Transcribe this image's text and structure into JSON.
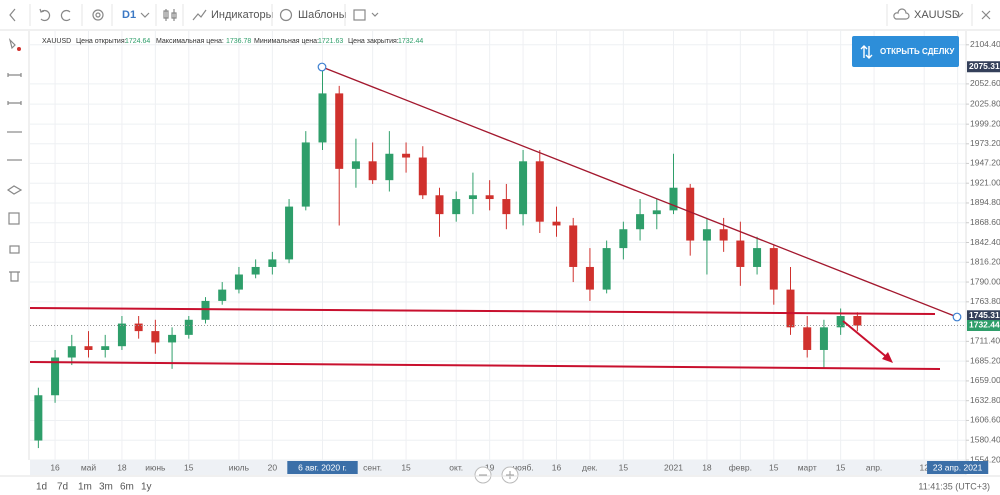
{
  "toolbar": {
    "timeframe": "D1",
    "indicators": "Индикаторы",
    "templates": "Шаблоны",
    "symbol": "XAUUSD"
  },
  "info": {
    "symbol": "XAUUSD",
    "open_label": "Цена открытия:",
    "open": 1724.64,
    "high_label": "Максимальная цена:",
    "high": 1736.78,
    "low_label": "Минимальная цена:",
    "low": 1721.63,
    "close_label": "Цена закрытия:",
    "close": 1732.44
  },
  "button": "ОТКРЫТЬ СДЕЛКУ",
  "bottom_bar": {
    "ranges": [
      "1d",
      "7d",
      "1m",
      "3m",
      "6m",
      "1y"
    ],
    "clock": "11:41:35 (UTC+3)"
  },
  "chart_data": {
    "type": "candlestick",
    "categories": [
      null,
      "16",
      null,
      "май",
      null,
      "18",
      null,
      "июнь",
      null,
      "15",
      null,
      null,
      "июль",
      null,
      "20",
      null,
      null,
      "6 авг. 2020 г.",
      null,
      null,
      "сент.",
      null,
      "15",
      null,
      null,
      "окт.",
      null,
      "19",
      null,
      "нояб.",
      null,
      "16",
      null,
      "дек.",
      null,
      "15",
      null,
      null,
      "2021",
      null,
      "18",
      null,
      "февр.",
      null,
      "15",
      null,
      "март",
      null,
      "15",
      null,
      "апр.",
      null,
      null,
      "12",
      null,
      "23 апр. 2021"
    ],
    "highlighted_categories": [
      17,
      55
    ],
    "open": [
      1580,
      1640,
      1690,
      1705,
      1700,
      1705,
      1735,
      1725,
      1710,
      1720,
      1740,
      1765,
      1780,
      1800,
      1810,
      1820,
      1890,
      1975,
      2040,
      1940,
      1950,
      1925,
      1960,
      1955,
      1905,
      1880,
      1900,
      1905,
      1900,
      1880,
      1950,
      1870,
      1865,
      1810,
      1780,
      1835,
      1860,
      1880,
      1885,
      1915,
      1845,
      1860,
      1845,
      1810,
      1835,
      1780,
      1730,
      1700,
      1730,
      1745,
      null,
      null,
      null,
      null,
      null,
      null
    ],
    "high": [
      1650,
      1700,
      1720,
      1725,
      1720,
      1745,
      1745,
      1740,
      1730,
      1745,
      1770,
      1790,
      1810,
      1820,
      1830,
      1900,
      1990,
      2075,
      2050,
      1980,
      1975,
      1990,
      1975,
      1970,
      1915,
      1910,
      1935,
      1925,
      1920,
      1965,
      1965,
      1890,
      1875,
      1835,
      1845,
      1870,
      1900,
      1900,
      1960,
      1920,
      1875,
      1875,
      1870,
      1850,
      1840,
      1810,
      1745,
      1740,
      1755,
      1750,
      null,
      null,
      null,
      null,
      null,
      null
    ],
    "low": [
      1570,
      1630,
      1680,
      1690,
      1690,
      1700,
      1715,
      1695,
      1675,
      1715,
      1735,
      1760,
      1775,
      1795,
      1800,
      1815,
      1885,
      1965,
      1865,
      1915,
      1920,
      1910,
      1935,
      1900,
      1850,
      1870,
      1880,
      1885,
      1860,
      1865,
      1855,
      1850,
      1790,
      1765,
      1775,
      1820,
      1845,
      1860,
      1880,
      1825,
      1800,
      1830,
      1785,
      1800,
      1760,
      1720,
      1690,
      1676,
      1720,
      1725,
      null,
      null,
      null,
      null,
      null,
      null
    ],
    "close": [
      1640,
      1690,
      1705,
      1700,
      1705,
      1735,
      1725,
      1710,
      1720,
      1740,
      1765,
      1780,
      1800,
      1810,
      1820,
      1890,
      1975,
      2040,
      1940,
      1950,
      1925,
      1960,
      1955,
      1905,
      1880,
      1900,
      1905,
      1900,
      1880,
      1950,
      1870,
      1865,
      1810,
      1780,
      1835,
      1860,
      1880,
      1885,
      1915,
      1845,
      1860,
      1845,
      1810,
      1835,
      1780,
      1730,
      1700,
      1730,
      1745,
      1732.44,
      null,
      null,
      null,
      null,
      null,
      null
    ],
    "up_color": "#2e9e6a",
    "down_color": "#d0312d",
    "ylim": [
      1554.2,
      2124
    ],
    "yticks": [
      {
        "value": 2104.4,
        "label": "2104.40"
      },
      {
        "value": 2052.6,
        "label": "2052.60"
      },
      {
        "value": 2025.8,
        "label": "2025.80"
      },
      {
        "value": 1999.2,
        "label": "1999.20"
      },
      {
        "value": 1973.2,
        "label": "1973.20"
      },
      {
        "value": 1947.2,
        "label": "1947.20"
      },
      {
        "value": 1921,
        "label": "1921.00"
      },
      {
        "value": 1894.8,
        "label": "1894.80"
      },
      {
        "value": 1868.6,
        "label": "1868.60"
      },
      {
        "value": 1842.4,
        "label": "1842.40"
      },
      {
        "value": 1816.2,
        "label": "1816.20"
      },
      {
        "value": 1790,
        "label": "1790.00"
      },
      {
        "value": 1763.8,
        "label": "1763.80"
      },
      {
        "value": 1711.4,
        "label": "1711.40"
      },
      {
        "value": 1685.2,
        "label": "1685.20"
      },
      {
        "value": 1659,
        "label": "1659.00"
      },
      {
        "value": 1632.8,
        "label": "1632.80"
      },
      {
        "value": 1606.6,
        "label": "1606.60"
      },
      {
        "value": 1580.4,
        "label": "1580.40"
      },
      {
        "value": 1554.2,
        "label": "1554.20"
      }
    ],
    "price_markers": [
      2075.31,
      1745.31,
      1732.44
    ],
    "price_marker_colors": [
      "#34405a",
      "#34405a",
      "#2e9e6a"
    ],
    "grid": true
  }
}
